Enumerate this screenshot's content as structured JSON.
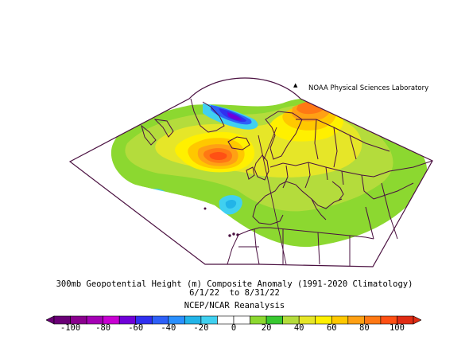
{
  "credit": "NOAA Physical Sciences Laboratory",
  "caption": {
    "line1": "300mb Geopotential Height (m) Composite Anomaly (1991-2020 Climatology)",
    "line2": "6/1/22  to 8/31/22",
    "line3": "NCEP/NCAR Reanalysis"
  },
  "colorbar": {
    "ticks": [
      "-100",
      "-80",
      "-60",
      "-40",
      "-20",
      "0",
      "20",
      "40",
      "60",
      "80",
      "100"
    ],
    "colors": [
      "#6a0076",
      "#8a008e",
      "#a400b4",
      "#c800d2",
      "#7000d8",
      "#3030f0",
      "#2e60f8",
      "#2a90ff",
      "#22b4e8",
      "#40d0f0",
      "#ffffff",
      "#ffffff",
      "#8cd830",
      "#38c830",
      "#b4dc3c",
      "#e6e628",
      "#fff000",
      "#ffc800",
      "#ffa014",
      "#ff7814",
      "#ff5014",
      "#e02c14"
    ]
  },
  "chart_data": {
    "type": "map",
    "variable": "300mb Geopotential Height Composite Anomaly",
    "units": "m",
    "period": "6/1/22 to 8/31/22",
    "climatology": "1991-2020",
    "contour_levels": [
      -100,
      -90,
      -80,
      -70,
      -60,
      -50,
      -40,
      -30,
      -20,
      -10,
      0,
      10,
      20,
      30,
      40,
      50,
      60,
      70,
      80,
      90,
      100
    ]
  }
}
